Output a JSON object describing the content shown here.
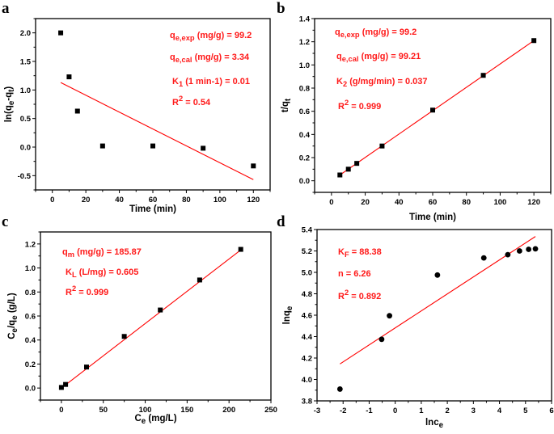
{
  "chart_data": [
    {
      "panel": "a",
      "type": "scatter",
      "xlabel": [
        {
          "t": "Time (min)"
        }
      ],
      "ylabel": [
        {
          "t": "ln(q"
        },
        {
          "sub": "e"
        },
        {
          "t": "-q"
        },
        {
          "sub": "t"
        },
        {
          "t": ")"
        }
      ],
      "xlim": [
        -10,
        130
      ],
      "ylim": [
        -0.75,
        2.25
      ],
      "xticks": [
        0,
        20,
        40,
        60,
        80,
        100,
        120
      ],
      "xtick_labels": [
        "0",
        "20",
        "40",
        "60",
        "80",
        "100",
        "120"
      ],
      "yticks": [
        -0.5,
        0,
        0.5,
        1,
        1.5,
        2
      ],
      "ytick_labels": [
        "-0.5",
        "0.0",
        "0.5",
        "1.0",
        "1.5",
        "2.0"
      ],
      "x": [
        5,
        10,
        15,
        30,
        60,
        90,
        120
      ],
      "y": [
        2.0,
        1.23,
        0.63,
        0.02,
        0.02,
        -0.02,
        -0.33
      ],
      "marker": "square",
      "fit_line": {
        "x": [
          5,
          120
        ],
        "y": [
          1.13,
          -0.57
        ]
      },
      "annotations": [
        [
          {
            "t": "q"
          },
          {
            "sub": "e,exp"
          },
          {
            "t": " (mg/g) = 99.2"
          }
        ],
        [
          {
            "t": "q"
          },
          {
            "sub": "e,cal"
          },
          {
            "t": " (mg/g) = 3.34"
          }
        ],
        [
          {
            "t": "K"
          },
          {
            "sub": "1"
          },
          {
            "t": " (1 min-1)  =  0.01"
          }
        ],
        [
          {
            "t": "R"
          },
          {
            "sup": "2"
          },
          {
            "t": " =  0.54"
          }
        ]
      ]
    },
    {
      "panel": "b",
      "type": "scatter",
      "xlabel": [
        {
          "t": "Time (min)"
        }
      ],
      "ylabel": [
        {
          "t": "t/q"
        },
        {
          "sub": "t"
        }
      ],
      "xlim": [
        -10,
        130
      ],
      "ylim": [
        -0.1,
        1.4
      ],
      "xticks": [
        0,
        20,
        40,
        60,
        80,
        100,
        120
      ],
      "xtick_labels": [
        "0",
        "20",
        "40",
        "60",
        "80",
        "100",
        "120"
      ],
      "yticks": [
        0,
        0.2,
        0.4,
        0.6,
        0.8,
        1.0,
        1.2,
        1.4
      ],
      "ytick_labels": [
        "0.0",
        "0.2",
        "0.4",
        "0.6",
        "0.8",
        "1.0",
        "1.2",
        "1.4"
      ],
      "x": [
        5,
        10,
        15,
        30,
        60,
        90,
        120
      ],
      "y": [
        0.05,
        0.1,
        0.15,
        0.3,
        0.61,
        0.91,
        1.21
      ],
      "marker": "square",
      "fit_line": {
        "x": [
          5,
          120
        ],
        "y": [
          0.05,
          1.21
        ]
      },
      "annotations": [
        [
          {
            "t": "q"
          },
          {
            "sub": "e,exp"
          },
          {
            "t": " (mg/g) = 99.2"
          }
        ],
        [
          {
            "t": "q"
          },
          {
            "sub": "e,cal"
          },
          {
            "t": " (mg/g) = 99.21"
          }
        ],
        [
          {
            "t": "K"
          },
          {
            "sub": "2"
          },
          {
            "t": " (g/mg/min)  =  0.037"
          }
        ],
        [
          {
            "t": "R"
          },
          {
            "sup": "2"
          },
          {
            "t": " =  0.999"
          }
        ]
      ]
    },
    {
      "panel": "c",
      "type": "scatter",
      "xlabel": [
        {
          "t": "C"
        },
        {
          "sub": "e"
        },
        {
          "t": " (mg/L)"
        }
      ],
      "ylabel": [
        {
          "t": "C"
        },
        {
          "sub": "e"
        },
        {
          "t": "/q"
        },
        {
          "sub": "e"
        },
        {
          "t": " (g/L)"
        }
      ],
      "xlim": [
        -25,
        250
      ],
      "ylim": [
        -0.1,
        1.3
      ],
      "xticks": [
        0,
        50,
        100,
        150,
        200,
        250
      ],
      "xtick_labels": [
        "0",
        "50",
        "100",
        "150",
        "200",
        "250"
      ],
      "yticks": [
        0,
        0.2,
        0.4,
        0.6,
        0.8,
        1.0,
        1.2
      ],
      "ytick_labels": [
        "0.0",
        "0.2",
        "0.4",
        "0.6",
        "0.8",
        "1.0",
        "1.2"
      ],
      "x": [
        0,
        5,
        30,
        75,
        118,
        165,
        214
      ],
      "y": [
        0.005,
        0.03,
        0.175,
        0.43,
        0.65,
        0.9,
        1.155
      ],
      "marker": "square",
      "fit_line": {
        "x": [
          0,
          214
        ],
        "y": [
          0.0,
          1.15
        ]
      },
      "annotations": [
        [
          {
            "t": "q"
          },
          {
            "sub": "m"
          },
          {
            "t": " (mg/g) = 185.87"
          }
        ],
        [
          {
            "t": "K"
          },
          {
            "sub": "L"
          },
          {
            "t": " (L/mg)  =  0.605"
          }
        ],
        [
          {
            "t": "R"
          },
          {
            "sup": "2"
          },
          {
            "t": " =  0.999"
          }
        ]
      ]
    },
    {
      "panel": "d",
      "type": "scatter",
      "xlabel": [
        {
          "t": "lnc"
        },
        {
          "sub": "e"
        }
      ],
      "ylabel": [
        {
          "t": "lnq"
        },
        {
          "sub": "e"
        }
      ],
      "xlim": [
        -3,
        6
      ],
      "ylim": [
        3.8,
        5.4
      ],
      "xticks": [
        -3,
        -2,
        -1,
        0,
        1,
        2,
        3,
        4,
        5,
        6
      ],
      "xtick_labels": [
        "-3",
        "-2",
        "-1",
        "0",
        "1",
        "2",
        "3",
        "4",
        "5",
        "6"
      ],
      "yticks": [
        3.8,
        4.0,
        4.2,
        4.4,
        4.6,
        4.8,
        5.0,
        5.2,
        5.4
      ],
      "ytick_labels": [
        "3.8",
        "4.0",
        "4.2",
        "4.4",
        "4.6",
        "4.8",
        "5.0",
        "5.2",
        "5.4"
      ],
      "x": [
        -2.12,
        -0.52,
        -0.22,
        1.62,
        3.4,
        4.32,
        4.77,
        5.12,
        5.38
      ],
      "y": [
        3.91,
        4.375,
        4.595,
        4.975,
        5.135,
        5.165,
        5.2,
        5.215,
        5.22
      ],
      "marker": "circle",
      "fit_line": {
        "x": [
          -2.12,
          5.38
        ],
        "y": [
          4.145,
          5.335
        ]
      },
      "annotations": [
        [
          {
            "t": "K"
          },
          {
            "sub": "F"
          },
          {
            "t": " =  88.38"
          }
        ],
        [
          {
            "t": "n =  6.26"
          }
        ],
        [
          {
            "t": "R"
          },
          {
            "sup": "2"
          },
          {
            "t": " =  0.892"
          }
        ]
      ]
    }
  ],
  "colors": {
    "points": "#000000",
    "fit_line": "#ff0000",
    "annotations": "#ff1a1a",
    "axes": "#000000"
  }
}
